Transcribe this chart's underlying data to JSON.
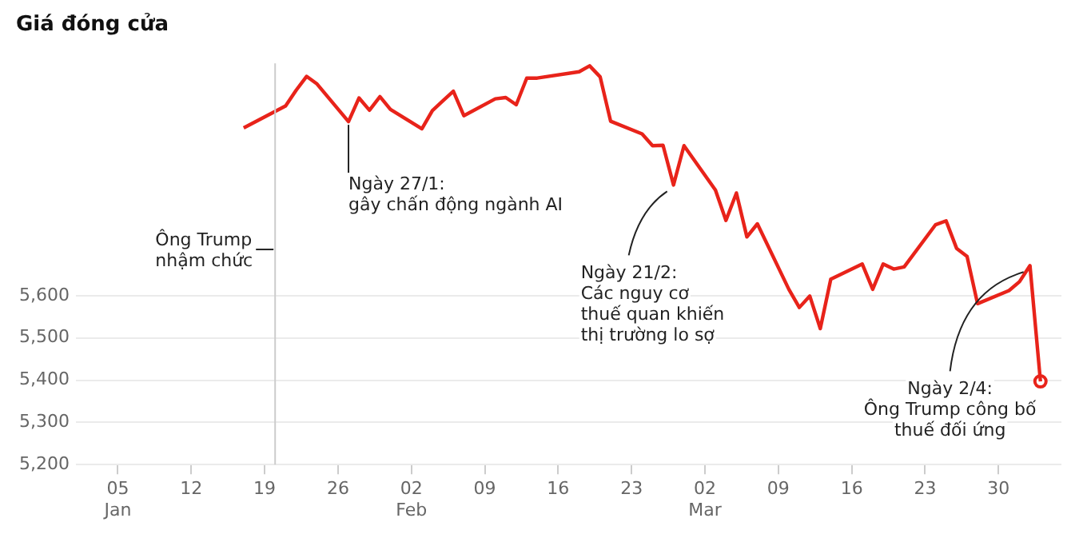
{
  "chart_data": {
    "type": "line",
    "title": "Giá đóng cửa",
    "x": [
      "--01-17",
      "--01-21",
      "--01-22",
      "--01-23",
      "--01-24",
      "--01-27",
      "--01-28",
      "--01-29",
      "--01-30",
      "--01-31",
      "--02-03",
      "--02-04",
      "--02-05",
      "--02-06",
      "--02-07",
      "--02-10",
      "--02-11",
      "--02-12",
      "--02-13",
      "--02-14",
      "--02-18",
      "--02-19",
      "--02-20",
      "--02-21",
      "--02-24",
      "--02-25",
      "--02-26",
      "--02-27",
      "--02-28",
      "--03-03",
      "--03-04",
      "--03-05",
      "--03-06",
      "--03-07",
      "--03-10",
      "--03-11",
      "--03-12",
      "--03-13",
      "--03-14",
      "--03-17",
      "--03-18",
      "--03-19",
      "--03-20",
      "--03-21",
      "--03-24",
      "--03-25",
      "--03-26",
      "--03-27",
      "--03-28",
      "--03-31",
      "--04-01",
      "--04-02",
      "--04-03"
    ],
    "series": [
      {
        "color": "#e8231a",
        "values": [
          5997,
          6049,
          6086,
          6119,
          6101,
          6012,
          6068,
          6039,
          6071,
          6041,
          5995,
          6038,
          6061,
          6084,
          6026,
          6066,
          6069,
          6052,
          6115,
          6115,
          6130,
          6144,
          6118,
          6013,
          5983,
          5955,
          5956,
          5862,
          5955,
          5850,
          5778,
          5843,
          5739,
          5770,
          5615,
          5572,
          5599,
          5522,
          5639,
          5675,
          5615,
          5675,
          5663,
          5668,
          5768,
          5777,
          5712,
          5693,
          5581,
          5612,
          5633,
          5671,
          5397
        ]
      },
      {
        "type": "scatter",
        "marker": "circle",
        "color": "#e8231a",
        "x": [
          "--04-03"
        ],
        "values": [
          5397
        ]
      }
    ],
    "xlim": [
      "--01-01",
      "--04-05"
    ],
    "xticks": [
      {
        "value": "--01-05",
        "label": "05\nJan"
      },
      {
        "value": "--01-12",
        "label": "12"
      },
      {
        "value": "--01-19",
        "label": "19"
      },
      {
        "value": "--01-26",
        "label": "26"
      },
      {
        "value": "--02-02",
        "label": "02\nFeb"
      },
      {
        "value": "--02-09",
        "label": "09"
      },
      {
        "value": "--02-16",
        "label": "16"
      },
      {
        "value": "--02-23",
        "label": "23"
      },
      {
        "value": "--03-02",
        "label": "02\nMar"
      },
      {
        "value": "--03-09",
        "label": "09"
      },
      {
        "value": "--03-16",
        "label": "16"
      },
      {
        "value": "--03-23",
        "label": "23"
      },
      {
        "value": "--03-30",
        "label": "30"
      }
    ],
    "ylim": [
      5200,
      6150
    ],
    "yticks": [
      {
        "value": 5200,
        "label": "5,200"
      },
      {
        "value": 5300,
        "label": "5,300"
      },
      {
        "value": 5400,
        "label": "5,400"
      },
      {
        "value": 5500,
        "label": "5,500"
      },
      {
        "value": 5600,
        "label": "5,600"
      }
    ],
    "grid": "y",
    "legend": false,
    "marker": "none",
    "line_style": "solid",
    "ref_lines": [
      {
        "axis": "x",
        "value": "--01-20",
        "label": "Ông Trump\nnhậm chức",
        "color": "#cccccc"
      }
    ],
    "annotations": [
      {
        "text": "Ngày 27/1:\ngây chấn động ngành AI",
        "x": "--01-27",
        "y": 6012
      },
      {
        "text": "Ngày 21/2:\nCác nguy cơ\nthuế quan khiến\nthị trường lo sợ",
        "x": "--02-27",
        "y": 5862
      },
      {
        "text": "Ngày 2/4:\nÔng Trump công bố\nthuế đối ứng",
        "x": "--04-02",
        "y": 5671
      }
    ]
  }
}
